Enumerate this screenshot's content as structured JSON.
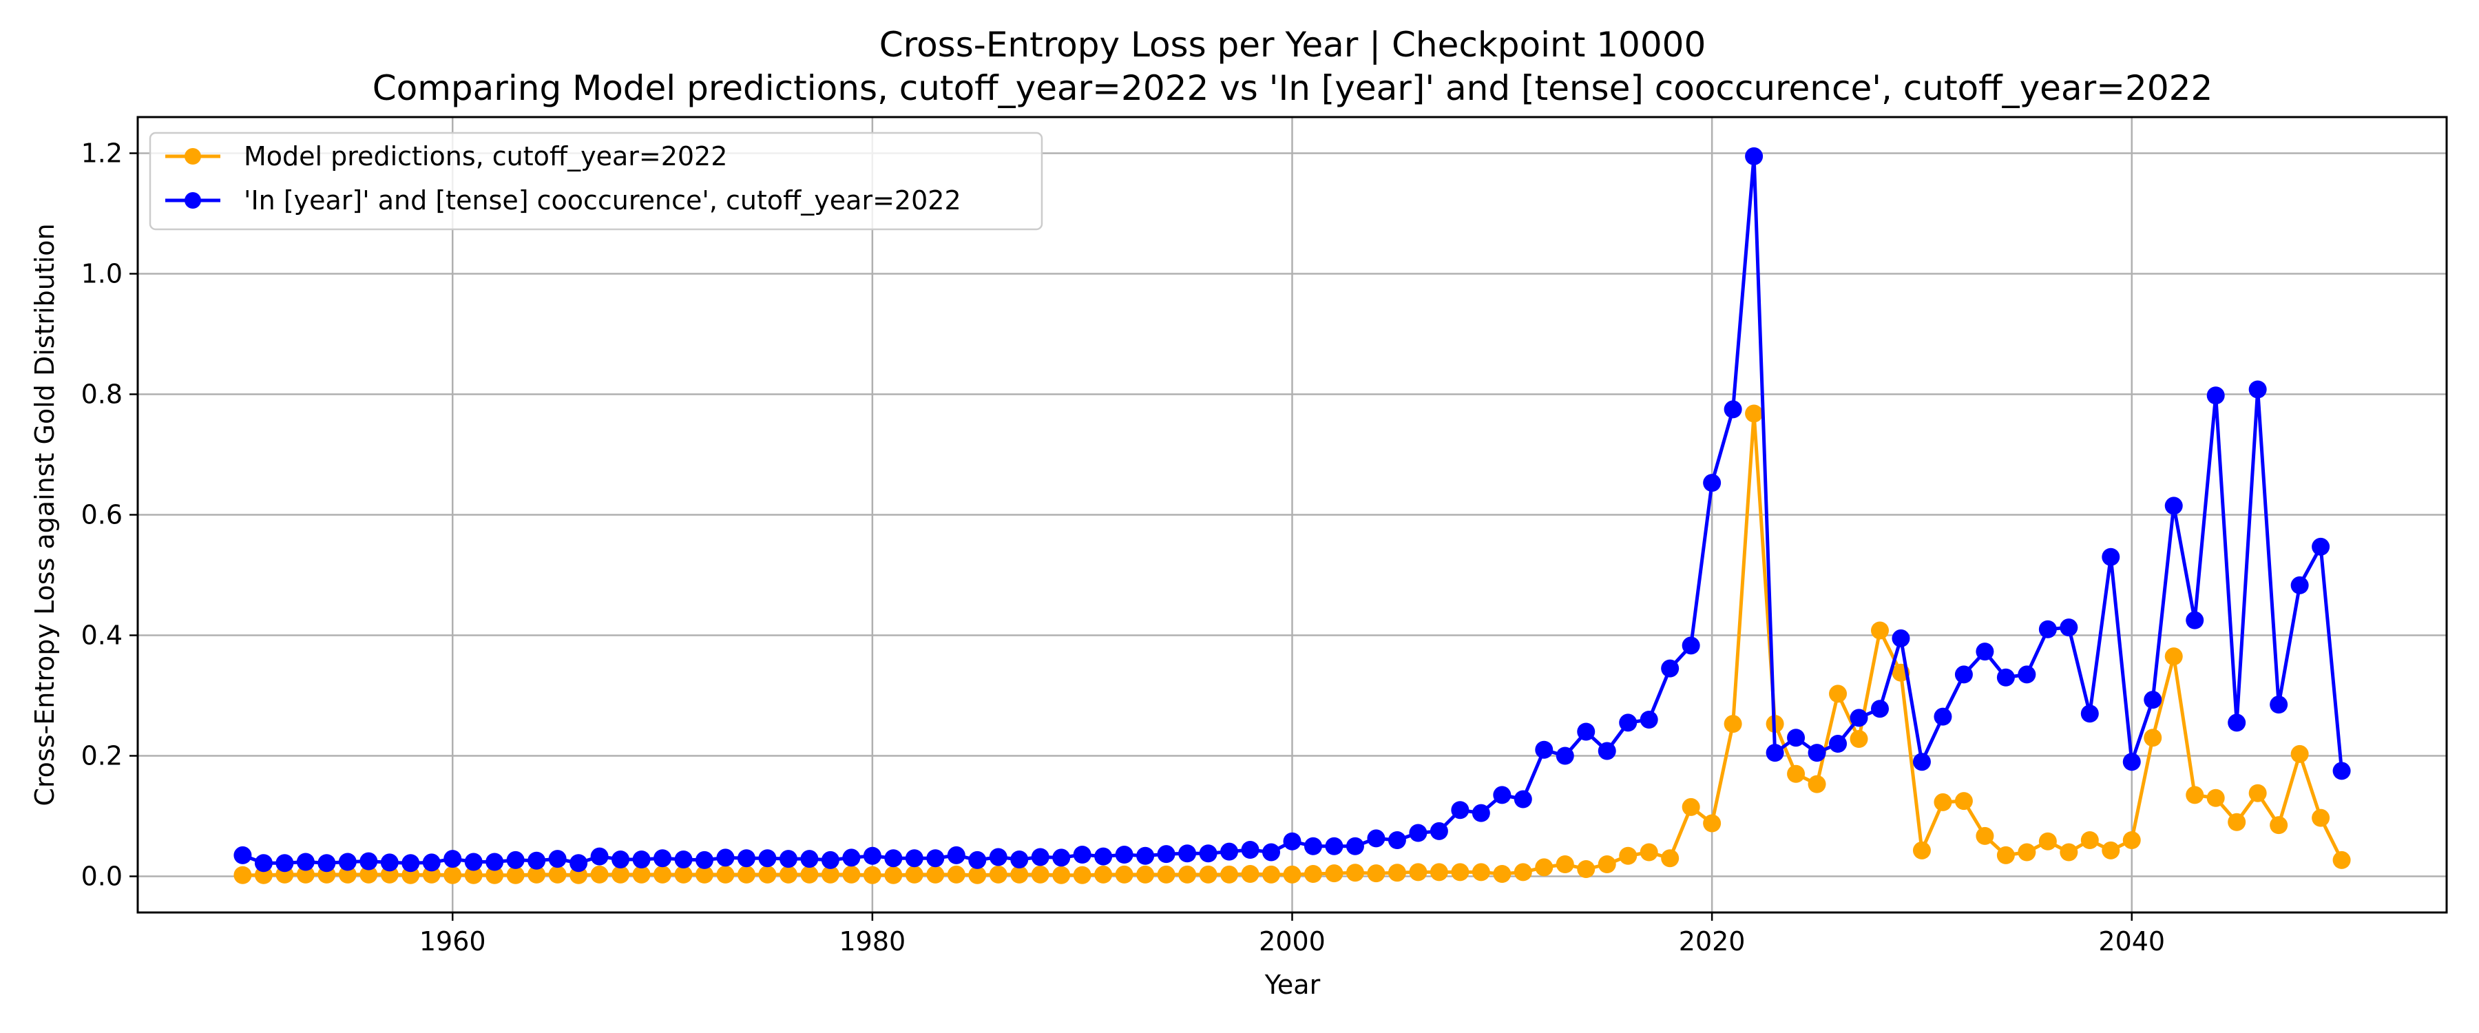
{
  "chart_data": {
    "type": "line",
    "title": "Cross-Entropy Loss per Year | Checkpoint 10000",
    "subtitle": "Comparing Model predictions, cutoff_year=2022 vs 'In [year]' and [tense] cooccurence', cutoff_year=2022",
    "xlabel": "Year",
    "ylabel": "Cross-Entropy Loss against Gold Distribution",
    "xlim": [
      1945,
      2055
    ],
    "ylim": [
      -0.06,
      1.26
    ],
    "xticks": [
      1960,
      1980,
      2000,
      2020,
      2040
    ],
    "xtick_labels": [
      "1960",
      "1980",
      "2000",
      "2020",
      "2040"
    ],
    "yticks": [
      0.0,
      0.2,
      0.4,
      0.6,
      0.8,
      1.0,
      1.2
    ],
    "ytick_labels": [
      "0.0",
      "0.2",
      "0.4",
      "0.6",
      "0.8",
      "1.0",
      "1.2"
    ],
    "grid": true,
    "legend_position": "top-left",
    "x": [
      1950,
      1951,
      1952,
      1953,
      1954,
      1955,
      1956,
      1957,
      1958,
      1959,
      1960,
      1961,
      1962,
      1963,
      1964,
      1965,
      1966,
      1967,
      1968,
      1969,
      1970,
      1971,
      1972,
      1973,
      1974,
      1975,
      1976,
      1977,
      1978,
      1979,
      1980,
      1981,
      1982,
      1983,
      1984,
      1985,
      1986,
      1987,
      1988,
      1989,
      1990,
      1991,
      1992,
      1993,
      1994,
      1995,
      1996,
      1997,
      1998,
      1999,
      2000,
      2001,
      2002,
      2003,
      2004,
      2005,
      2006,
      2007,
      2008,
      2009,
      2010,
      2011,
      2012,
      2013,
      2014,
      2015,
      2016,
      2017,
      2018,
      2019,
      2020,
      2021,
      2022,
      2023,
      2024,
      2025,
      2026,
      2027,
      2028,
      2029,
      2030,
      2031,
      2032,
      2033,
      2034,
      2035,
      2036,
      2037,
      2038,
      2039,
      2040,
      2041,
      2042,
      2043,
      2044,
      2045,
      2046,
      2047,
      2048,
      2049,
      2050
    ],
    "series": [
      {
        "name": "Model predictions, cutoff_year=2022",
        "color": "#ffa500",
        "values": [
          0.002,
          0.002,
          0.003,
          0.003,
          0.003,
          0.003,
          0.003,
          0.003,
          0.002,
          0.003,
          0.002,
          0.002,
          0.002,
          0.002,
          0.003,
          0.003,
          0.002,
          0.003,
          0.003,
          0.003,
          0.003,
          0.003,
          0.003,
          0.003,
          0.003,
          0.003,
          0.003,
          0.003,
          0.003,
          0.003,
          0.002,
          0.002,
          0.003,
          0.003,
          0.003,
          0.002,
          0.003,
          0.003,
          0.003,
          0.002,
          0.002,
          0.003,
          0.003,
          0.003,
          0.003,
          0.003,
          0.003,
          0.003,
          0.004,
          0.003,
          0.003,
          0.004,
          0.005,
          0.006,
          0.005,
          0.006,
          0.007,
          0.007,
          0.007,
          0.007,
          0.004,
          0.007,
          0.015,
          0.02,
          0.012,
          0.02,
          0.034,
          0.04,
          0.03,
          0.115,
          0.088,
          0.253,
          0.768,
          0.253,
          0.17,
          0.153,
          0.303,
          0.228,
          0.408,
          0.338,
          0.043,
          0.123,
          0.125,
          0.067,
          0.035,
          0.04,
          0.058,
          0.04,
          0.06,
          0.043,
          0.06,
          0.23,
          0.365,
          0.135,
          0.13,
          0.09,
          0.138,
          0.085,
          0.203,
          0.097,
          0.027
        ]
      },
      {
        "name": "'In [year]' and [tense] cooccurence', cutoff_year=2022",
        "color": "#0000ff",
        "values": [
          0.035,
          0.022,
          0.022,
          0.024,
          0.022,
          0.024,
          0.025,
          0.023,
          0.022,
          0.023,
          0.029,
          0.024,
          0.024,
          0.027,
          0.026,
          0.029,
          0.022,
          0.033,
          0.028,
          0.028,
          0.03,
          0.028,
          0.027,
          0.031,
          0.03,
          0.03,
          0.029,
          0.029,
          0.027,
          0.031,
          0.034,
          0.03,
          0.03,
          0.03,
          0.035,
          0.027,
          0.032,
          0.028,
          0.032,
          0.031,
          0.036,
          0.033,
          0.036,
          0.034,
          0.037,
          0.038,
          0.038,
          0.041,
          0.044,
          0.04,
          0.058,
          0.05,
          0.05,
          0.05,
          0.063,
          0.06,
          0.072,
          0.075,
          0.11,
          0.105,
          0.135,
          0.128,
          0.21,
          0.2,
          0.24,
          0.208,
          0.255,
          0.26,
          0.345,
          0.383,
          0.653,
          0.775,
          1.195,
          0.205,
          0.23,
          0.205,
          0.22,
          0.263,
          0.278,
          0.395,
          0.19,
          0.265,
          0.335,
          0.373,
          0.33,
          0.335,
          0.41,
          0.413,
          0.27,
          0.53,
          0.19,
          0.293,
          0.615,
          0.425,
          0.798,
          0.255,
          0.808,
          0.285,
          0.483,
          0.547,
          0.175
        ]
      }
    ]
  }
}
